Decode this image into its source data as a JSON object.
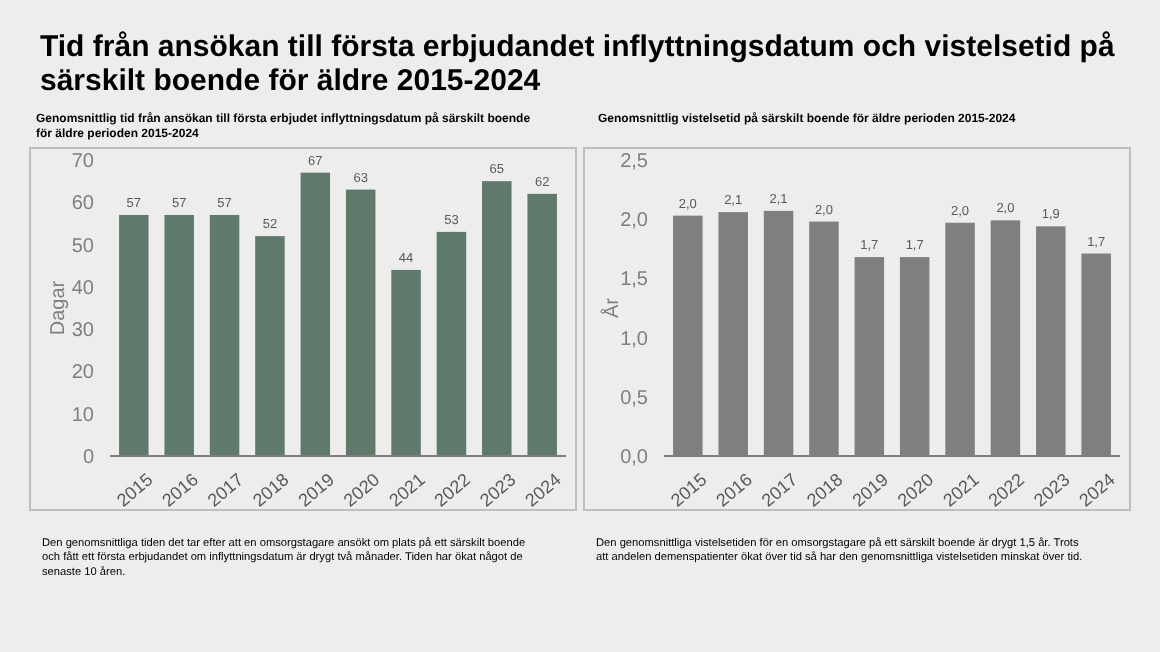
{
  "chart_data": [
    {
      "type": "bar",
      "title": "Tid från ansökan till första erbjudandet inflyttningsdatum och vistelsetid på särskilt boende för äldre 2015-2024",
      "subtitle": "Genomsnittlig tid från ansökan till första erbjudet inflyttningsdatum på särskilt boende för äldre perioden 2015-2024",
      "ylabel": "Dagar",
      "categories": [
        "2015",
        "2016",
        "2017",
        "2018",
        "2019",
        "2020",
        "2021",
        "2022",
        "2023",
        "2024"
      ],
      "values": [
        57,
        57,
        57,
        52,
        67,
        63,
        44,
        53,
        65,
        62
      ],
      "color": "#5f7a6b",
      "ylim": [
        0,
        70
      ],
      "yticks": [
        0,
        10,
        20,
        30,
        40,
        50,
        60,
        70
      ],
      "data_labels": true,
      "grid": false,
      "annotations": [
        "Den genomsnittliga tiden det tar efter att en omsorgstagare ansökt om plats på ett särskilt boende och fått ett första erbjudandet om inflyttningsdatum är drygt två månader. Tiden har ökat något de senaste 10 åren."
      ]
    },
    {
      "type": "bar",
      "title": "Genomsnittlig vistelsetid på särskilt boende för äldre perioden 2015-2024",
      "ylabel": "År",
      "categories": [
        "2015",
        "2016",
        "2017",
        "2018",
        "2019",
        "2020",
        "2021",
        "2022",
        "2023",
        "2024"
      ],
      "values": [
        2.03,
        2.06,
        2.07,
        1.98,
        1.68,
        1.68,
        1.97,
        1.99,
        1.94,
        1.71
      ],
      "value_labels": [
        "2,0",
        "2,1",
        "2,1",
        "2,0",
        "1,7",
        "1,7",
        "2,0",
        "2,0",
        "1,9",
        "1,7"
      ],
      "color": "#7f7f7f",
      "ylim": [
        0,
        2.5
      ],
      "yticks": [
        {
          "value": 0,
          "label": "0,0"
        },
        {
          "value": 0.5,
          "label": "0,5"
        },
        {
          "value": 1,
          "label": "1,0"
        },
        {
          "value": 1.5,
          "label": "1,5"
        },
        {
          "value": 2,
          "label": "2,0"
        },
        {
          "value": 2.5,
          "label": "2,5"
        }
      ],
      "grid": false,
      "annotations": [
        "Den genomsnittliga vistelsetiden för en omsorgstagare på ett särskilt boende är drygt 1,5 år. Trots att andelen demenspatienter ökat över tid så har den genomsnittliga vistelsetiden minskat över tid."
      ]
    }
  ]
}
